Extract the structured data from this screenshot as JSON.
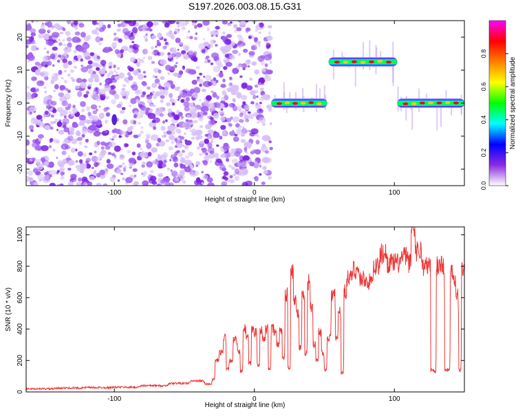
{
  "title": "S197.2026.003.08.15.G31",
  "colors": {
    "line": "#ee3333",
    "axis": "#000000"
  },
  "chart_data": [
    {
      "type": "heatmap",
      "xlabel": "Height of straight line (km)",
      "ylabel": "Frequency (Hz)",
      "xlim": [
        -163,
        150
      ],
      "ylim": [
        -25,
        25
      ],
      "x_ticks": [
        -100,
        0,
        100
      ],
      "y_ticks": [
        -20,
        -10,
        0,
        10,
        20
      ],
      "colorbar": {
        "label": "Normalized spectral amplitude",
        "range": [
          0,
          1
        ],
        "ticks": [
          "0.0",
          "0.2",
          "0.4",
          "0.6",
          "0.8"
        ],
        "colormap": [
          "#ffffff",
          "#8a2be2",
          "#0000ff",
          "#00ffff",
          "#00ff00",
          "#ffff00",
          "#ff8000",
          "#ff0000",
          "#ff00ff"
        ]
      },
      "noise_region": {
        "x": [
          -163,
          12
        ],
        "level": "low"
      },
      "signal_tracks": [
        {
          "x": [
            12,
            52
          ],
          "freq": 0,
          "peak": 0.85
        },
        {
          "x": [
            53,
            102
          ],
          "freq": 12.5,
          "peak": 0.85
        },
        {
          "x": [
            102,
            150
          ],
          "freq": 0,
          "peak": 0.85
        }
      ]
    },
    {
      "type": "line",
      "xlabel": "Height of straight line (km)",
      "ylabel": "SNR (10 * v/v)",
      "xlim": [
        -163,
        150
      ],
      "ylim": [
        0,
        1050
      ],
      "x_ticks": [
        -100,
        0,
        100
      ],
      "y_ticks": [
        0,
        200,
        400,
        600,
        800,
        1000
      ],
      "series": [
        {
          "x": [
            -163,
            -140,
            -120,
            -100,
            -80,
            -60,
            -45,
            -35,
            -30,
            -28,
            -25,
            -22,
            -20,
            -18,
            -15,
            -12,
            -10,
            -8,
            -6,
            -4,
            -2,
            0,
            2,
            4,
            6,
            8,
            10,
            12,
            14,
            16,
            18,
            20,
            22,
            24,
            26,
            28,
            30,
            32,
            34,
            36,
            38,
            40,
            42,
            44,
            46,
            48,
            50,
            52,
            55,
            58,
            60,
            62,
            64,
            66,
            70,
            75,
            80,
            85,
            90,
            95,
            100,
            105,
            110,
            112,
            115,
            120,
            125,
            126,
            128,
            130,
            132,
            134,
            136,
            138,
            140,
            142,
            144,
            146,
            148,
            150
          ],
          "values": [
            20,
            25,
            28,
            30,
            40,
            55,
            70,
            50,
            80,
            200,
            250,
            350,
            150,
            200,
            330,
            250,
            130,
            400,
            350,
            180,
            400,
            380,
            170,
            400,
            330,
            400,
            150,
            400,
            380,
            300,
            400,
            220,
            620,
            150,
            780,
            600,
            500,
            280,
            600,
            250,
            700,
            550,
            300,
            200,
            380,
            250,
            140,
            350,
            620,
            340,
            520,
            120,
            640,
            720,
            780,
            720,
            700,
            800,
            880,
            820,
            820,
            860,
            820,
            1050,
            900,
            800,
            800,
            140,
            130,
            800,
            820,
            800,
            140,
            140,
            780,
            720,
            620,
            140,
            780,
            760
          ]
        }
      ]
    }
  ]
}
